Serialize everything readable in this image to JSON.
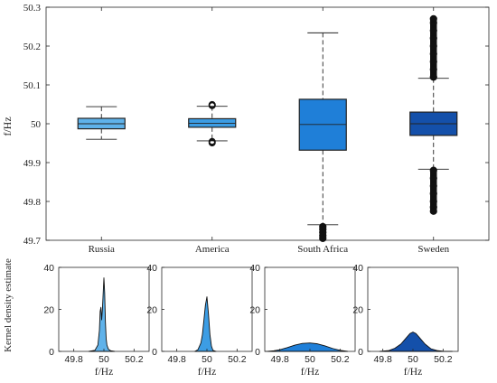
{
  "chart_data": [
    {
      "type": "box",
      "ylabel": "f/Hz",
      "ylim": [
        49.7,
        50.3
      ],
      "yticks": [
        "49.7",
        "49.8",
        "49.9",
        "50",
        "50.1",
        "50.2",
        "50.3"
      ],
      "categories": [
        "Russia",
        "America",
        "South Africa",
        "Sweden"
      ],
      "boxes": [
        {
          "name": "Russia",
          "whisker_low": 49.96,
          "q1": 49.987,
          "median": 50.0,
          "q3": 50.014,
          "whisker_high": 50.044,
          "outliers_low": [],
          "outliers_high": [],
          "color": "#5fb2ea"
        },
        {
          "name": "America",
          "whisker_low": 49.956,
          "q1": 49.991,
          "median": 50.001,
          "q3": 50.013,
          "whisker_high": 50.045,
          "outliers_low": [
            49.951,
            49.954
          ],
          "outliers_high": [
            50.047,
            50.049
          ],
          "color": "#3c9de4"
        },
        {
          "name": "South Africa",
          "whisker_low": 49.74,
          "q1": 49.932,
          "median": 49.998,
          "q3": 50.063,
          "whisker_high": 50.234,
          "outliers_low": [
            49.735,
            49.728,
            49.72,
            49.712,
            49.705
          ],
          "outliers_high": [],
          "color": "#1f7fd8"
        },
        {
          "name": "Sweden",
          "whisker_low": 49.883,
          "q1": 49.97,
          "median": 50.0,
          "q3": 50.03,
          "whisker_high": 50.117,
          "outliers_low": [
            49.88,
            49.86,
            49.84,
            49.82,
            49.8,
            49.785,
            49.775
          ],
          "outliers_high": [
            50.12,
            50.14,
            50.16,
            50.18,
            50.2,
            50.22,
            50.24,
            50.26,
            50.27
          ],
          "color": "#1450aa"
        }
      ]
    },
    {
      "type": "area",
      "ylabel": "Kernel density estimate",
      "xlabel": "f/Hz",
      "xlim": [
        49.7,
        50.3
      ],
      "ylim": [
        0,
        40
      ],
      "xticks": [
        "49.8",
        "50",
        "50.2"
      ],
      "yticks": [
        "0",
        "20",
        "40"
      ],
      "panels": [
        {
          "name": "Russia",
          "color": "#5fb2ea",
          "x": [
            49.9,
            49.94,
            49.96,
            49.97,
            49.975,
            49.98,
            49.985,
            49.99,
            50.0,
            50.005,
            50.01,
            50.015,
            50.02,
            50.03,
            50.045,
            50.07
          ],
          "y": [
            0,
            0.5,
            3,
            10,
            19,
            21,
            15,
            20,
            35,
            28,
            14,
            6,
            3,
            1,
            0.3,
            0
          ]
        },
        {
          "name": "America",
          "color": "#3c9de4",
          "x": [
            49.92,
            49.94,
            49.96,
            49.97,
            49.98,
            49.99,
            50.0,
            50.01,
            50.02,
            50.03,
            50.04,
            50.06
          ],
          "y": [
            0,
            0.8,
            4,
            8,
            15,
            22,
            26,
            18,
            8,
            2.5,
            0.5,
            0
          ]
        },
        {
          "name": "South Africa",
          "color": "#1f7fd8",
          "x": [
            49.72,
            49.76,
            49.8,
            49.85,
            49.9,
            49.95,
            50.0,
            50.05,
            50.1,
            50.15,
            50.2,
            50.25
          ],
          "y": [
            0,
            0.3,
            0.8,
            1.8,
            3,
            3.8,
            4,
            3.6,
            2.6,
            1.4,
            0.5,
            0
          ]
        },
        {
          "name": "Sweden",
          "color": "#1450aa",
          "x": [
            49.78,
            49.84,
            49.88,
            49.92,
            49.95,
            49.98,
            50.0,
            50.02,
            50.05,
            50.08,
            50.12,
            50.16,
            50.2,
            50.26
          ],
          "y": [
            0,
            0.4,
            1.5,
            3.5,
            6,
            8.5,
            9.2,
            8.5,
            6,
            3.5,
            1.2,
            0.4,
            0.1,
            0
          ]
        }
      ]
    }
  ]
}
